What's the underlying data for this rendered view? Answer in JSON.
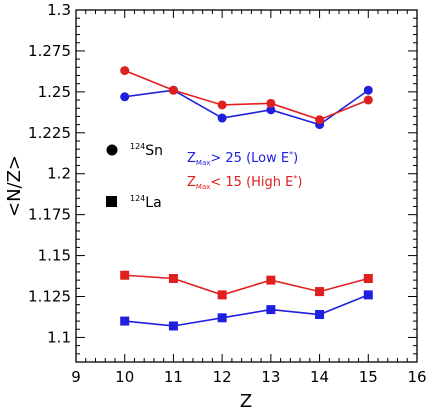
{
  "chart_data": {
    "type": "line",
    "xlabel": "Z",
    "ylabel": "<N/Z>",
    "xlim": [
      9,
      16
    ],
    "ylim": [
      1.085,
      1.3
    ],
    "xticks": [
      "9",
      "10",
      "11",
      "12",
      "13",
      "14",
      "15",
      "16"
    ],
    "yticks": [
      "1.1",
      "1.125",
      "1.15",
      "1.175",
      "1.2",
      "1.225",
      "1.25",
      "1.275",
      "1.3"
    ],
    "grid": false,
    "colors": {
      "blue": "#1f1fe0",
      "red": "#e01f1f"
    },
    "series": [
      {
        "color": "#1f1fe0",
        "marker": "circle",
        "x": [
          10,
          11,
          12,
          13,
          14,
          15
        ],
        "values": [
          1.247,
          1.251,
          1.234,
          1.239,
          1.23,
          1.251
        ]
      },
      {
        "color": "#e01f1f",
        "marker": "circle",
        "x": [
          10,
          11,
          12,
          13,
          14,
          15
        ],
        "values": [
          1.263,
          1.251,
          1.242,
          1.243,
          1.233,
          1.245
        ]
      },
      {
        "color": "#e01f1f",
        "marker": "square",
        "x": [
          10,
          11,
          12,
          13,
          14,
          15
        ],
        "values": [
          1.138,
          1.136,
          1.126,
          1.135,
          1.128,
          1.136
        ]
      },
      {
        "color": "#1f1fe0",
        "marker": "square",
        "x": [
          10,
          11,
          12,
          13,
          14,
          15
        ],
        "values": [
          1.11,
          1.107,
          1.112,
          1.117,
          1.114,
          1.126
        ]
      }
    ],
    "legend": {
      "markers": [
        {
          "marker": "circle",
          "mass": "124",
          "element": "Sn"
        },
        {
          "marker": "square",
          "mass": "124",
          "element": "La"
        }
      ],
      "colors": [
        {
          "color": "#1f1fe0",
          "prefix": "Z",
          "sub": "Max",
          "text": "> 25 (Low E",
          "sup": "*",
          "suffix": ")"
        },
        {
          "color": "#e01f1f",
          "prefix": "Z",
          "sub": "Max",
          "text": "< 15 (High E",
          "sup": "*",
          "suffix": ")"
        }
      ]
    }
  }
}
